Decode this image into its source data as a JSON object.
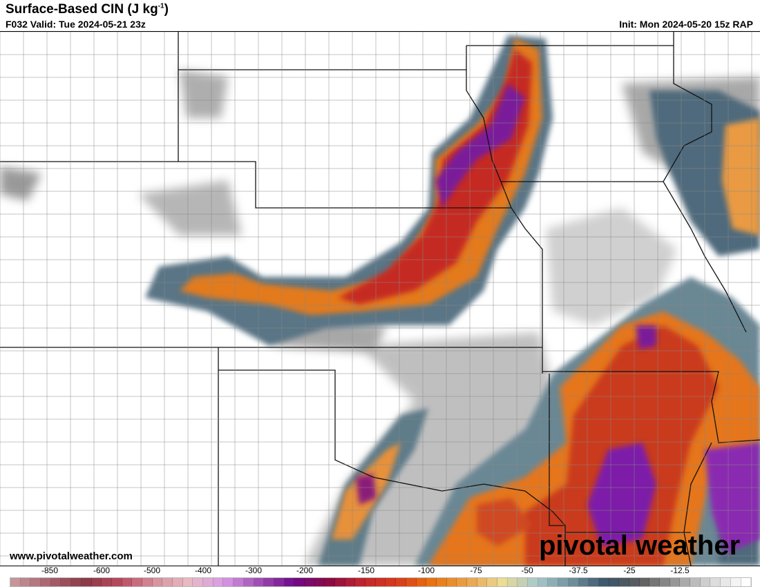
{
  "header": {
    "title": "Surface-Based CIN (J kg",
    "title_sup": "-1",
    "title_end": ")",
    "valid": "F032 Valid: Tue 2024-05-21 23z",
    "init": "Init: Mon 2024-05-20 15z RAP"
  },
  "footer": {
    "website": "www.pivotalweather.com",
    "brand": "pivotal weather"
  },
  "colorbar": {
    "labels": [
      "-850",
      "-600",
      "-500",
      "-400",
      "-300",
      "-200",
      "-150",
      "-100",
      "-75",
      "-50",
      "-37.5",
      "-25",
      "-12.5"
    ],
    "anchor_colors": [
      "#c4959b",
      "#a8636d",
      "#8a3a48",
      "#b84a5f",
      "#d7909c",
      "#e8bcc3",
      "#d89ae6",
      "#a04fb3",
      "#6e0a8a",
      "#8a0a44",
      "#c0262e",
      "#d83c1c",
      "#e87510",
      "#e9a24c",
      "#ebdc96",
      "#a8c8cc",
      "#6f8f9c",
      "#3a5468",
      "#5e5e5e",
      "#9a9a9a",
      "#d8d8d8",
      "#ffffff"
    ]
  }
}
